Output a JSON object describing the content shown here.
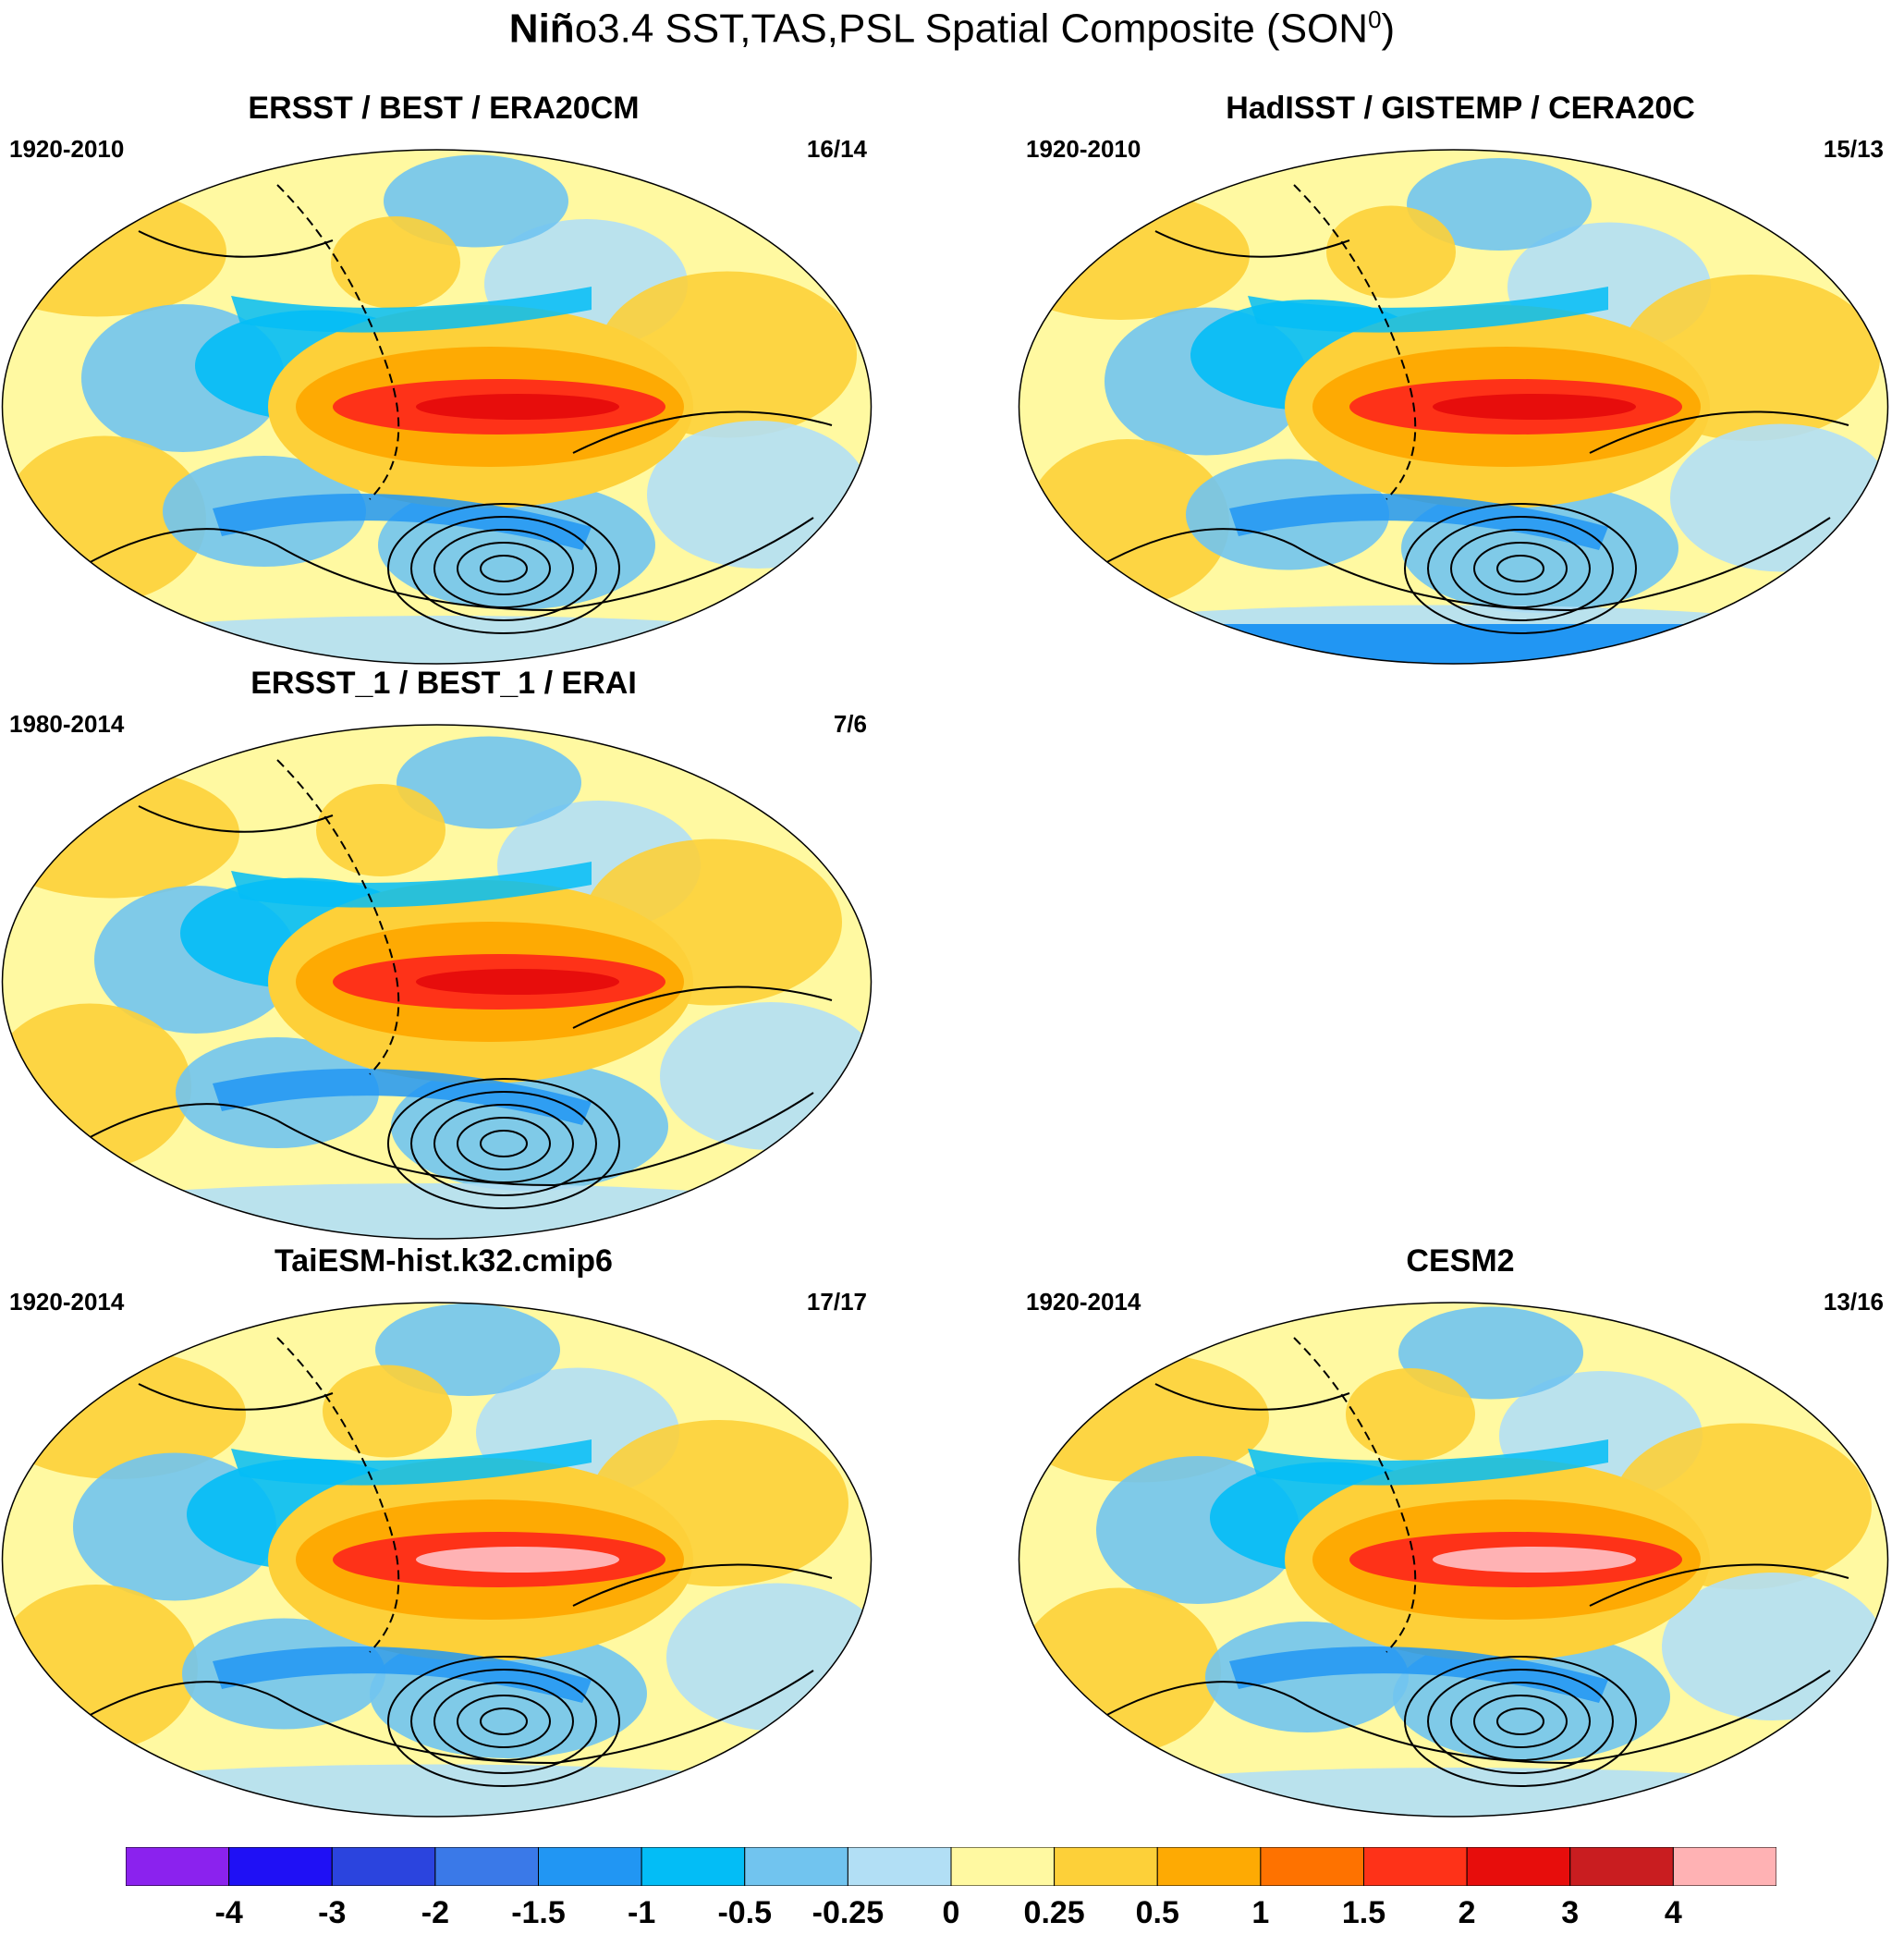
{
  "title": {
    "bold_part": "Niñ",
    "rest": "o3.4 SST,TAS,PSL Spatial Composite (SON",
    "sup": "0",
    "close": ")"
  },
  "panels": [
    {
      "id": "p1",
      "title": "ERSST / BEST / ERA20CM",
      "years": "1920-2010",
      "count": "16/14"
    },
    {
      "id": "p2",
      "title": "HadISST / GISTEMP / CERA20C",
      "years": "1920-2010",
      "count": "15/13"
    },
    {
      "id": "p3",
      "title": "ERSST_1 / BEST_1 / ERAI",
      "years": "1980-2014",
      "count": "7/6"
    },
    {
      "id": "p4",
      "title": "TaiESM-hist.k32.cmip6",
      "years": "1920-2014",
      "count": "17/17"
    },
    {
      "id": "p5",
      "title": "CESM2",
      "years": "1920-2014",
      "count": "13/16"
    }
  ],
  "colorbar": {
    "colors": [
      "#8b22ee",
      "#1f10f5",
      "#2b44de",
      "#3a79e8",
      "#2196f3",
      "#03bdf6",
      "#71c4ef",
      "#b2dff5",
      "#fff9a1",
      "#fdd039",
      "#feaa03",
      "#fe7200",
      "#fe3218",
      "#e70d0c",
      "#c91d20",
      "#ffb2b4"
    ],
    "labels": [
      "-4",
      "-3",
      "-2",
      "-1.5",
      "-1",
      "-0.5",
      "-0.25",
      "0",
      "0.25",
      "0.5",
      "1",
      "1.5",
      "2",
      "3",
      "4"
    ]
  }
}
